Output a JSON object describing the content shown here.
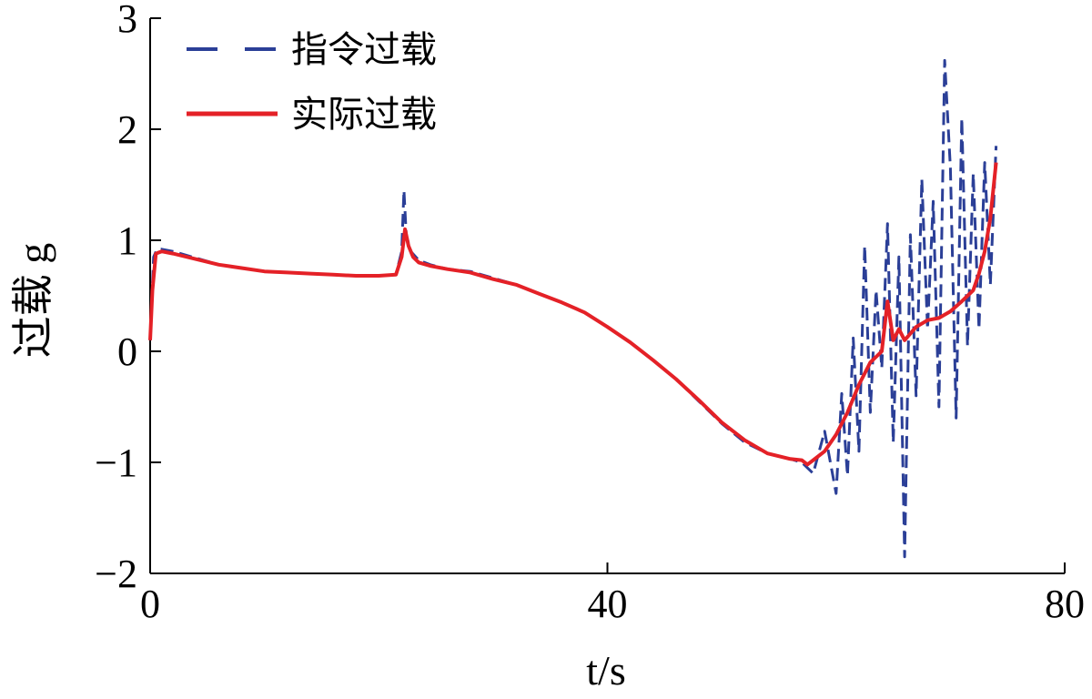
{
  "chart_data": {
    "type": "line",
    "xlabel": "t/s",
    "ylabel": "过载 g",
    "xlim": [
      0,
      80
    ],
    "ylim": [
      -2,
      3
    ],
    "xticks": [
      0,
      40,
      80
    ],
    "yticks": [
      -2,
      -1,
      0,
      1,
      2,
      3
    ],
    "grid": false,
    "legend_position": "top-left",
    "series": [
      {
        "name": "指令过载",
        "style": "dashed",
        "color": "#2b3f97",
        "x": [
          0.0,
          0.3,
          0.6,
          1,
          2,
          4,
          6,
          8,
          10,
          12,
          14,
          16,
          18,
          20,
          21.5,
          22.0,
          22.2,
          22.4,
          22.8,
          23.5,
          24.5,
          26,
          28,
          30,
          32,
          34,
          36,
          38,
          40,
          42,
          44,
          46,
          48,
          50,
          52,
          54,
          56,
          57,
          58,
          59,
          60,
          60.5,
          61,
          61.5,
          62,
          62.5,
          63,
          63.5,
          64,
          64.5,
          65,
          65.5,
          66,
          66.5,
          67,
          67.5,
          68,
          68.5,
          69,
          69.5,
          70,
          70.5,
          71,
          71.5,
          72,
          72.5,
          73,
          73.5,
          74
        ],
        "y": [
          0.1,
          0.85,
          0.92,
          0.92,
          0.9,
          0.84,
          0.78,
          0.75,
          0.72,
          0.71,
          0.7,
          0.69,
          0.68,
          0.68,
          0.69,
          0.9,
          1.45,
          1.05,
          0.9,
          0.82,
          0.78,
          0.74,
          0.72,
          0.66,
          0.6,
          0.52,
          0.44,
          0.35,
          0.22,
          0.08,
          -0.08,
          -0.25,
          -0.45,
          -0.65,
          -0.82,
          -0.92,
          -0.97,
          -1.0,
          -1.1,
          -0.72,
          -1.28,
          -0.38,
          -1.12,
          0.12,
          -0.9,
          0.95,
          -0.55,
          0.55,
          -0.15,
          1.15,
          -0.82,
          0.85,
          -1.85,
          1.05,
          -0.4,
          1.55,
          0.2,
          1.35,
          -0.5,
          2.62,
          1.65,
          -0.6,
          2.1,
          0.05,
          1.6,
          0.2,
          1.7,
          0.6,
          1.85
        ]
      },
      {
        "name": "实际过载",
        "style": "solid",
        "color": "#e42127",
        "x": [
          0.0,
          0.2,
          0.5,
          1,
          2,
          4,
          6,
          8,
          10,
          12,
          14,
          16,
          18,
          20,
          21.5,
          22.0,
          22.3,
          22.6,
          23.0,
          23.5,
          24.5,
          26,
          28,
          30,
          32,
          34,
          36,
          38,
          40,
          42,
          44,
          46,
          48,
          50,
          52,
          54,
          56,
          57,
          57.5,
          58,
          59,
          60,
          61,
          62,
          63,
          64,
          64.5,
          65,
          65.5,
          66,
          67,
          68,
          69,
          70,
          71,
          72,
          72.5,
          73,
          73.5,
          74
        ],
        "y": [
          0.1,
          0.55,
          0.88,
          0.9,
          0.88,
          0.83,
          0.78,
          0.75,
          0.72,
          0.71,
          0.7,
          0.69,
          0.68,
          0.68,
          0.69,
          0.85,
          1.1,
          0.95,
          0.85,
          0.8,
          0.77,
          0.74,
          0.71,
          0.65,
          0.6,
          0.52,
          0.44,
          0.35,
          0.22,
          0.08,
          -0.08,
          -0.25,
          -0.44,
          -0.64,
          -0.8,
          -0.92,
          -0.97,
          -0.98,
          -1.02,
          -0.98,
          -0.9,
          -0.75,
          -0.55,
          -0.3,
          -0.1,
          0.0,
          0.45,
          0.1,
          0.2,
          0.1,
          0.22,
          0.28,
          0.3,
          0.36,
          0.45,
          0.55,
          0.7,
          0.9,
          1.2,
          1.7
        ]
      }
    ]
  }
}
